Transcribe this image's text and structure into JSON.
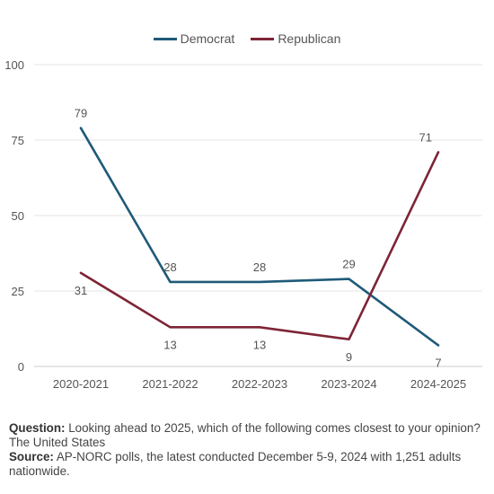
{
  "chart_data": {
    "type": "line",
    "categories": [
      "2020-2021",
      "2021-2022",
      "2022-2023",
      "2023-2024",
      "2024-2025"
    ],
    "series": [
      {
        "name": "Democrat",
        "color": "#1f5a78",
        "values": [
          79,
          28,
          28,
          29,
          7
        ]
      },
      {
        "name": "Republican",
        "color": "#7e2435",
        "values": [
          31,
          13,
          13,
          9,
          71
        ]
      }
    ],
    "ylim": [
      0,
      100
    ],
    "yticks": [
      0,
      25,
      50,
      75,
      100
    ],
    "grid": true,
    "legend": "top-center"
  },
  "footnote": {
    "question_label": "Question:",
    "question_text": " Looking ahead to 2025, which of the following comes closest to your opinion? The United States",
    "source_label": "Source:",
    "source_text": " AP-NORC polls, the latest conducted December 5-9, 2024 with 1,251 adults nationwide."
  }
}
